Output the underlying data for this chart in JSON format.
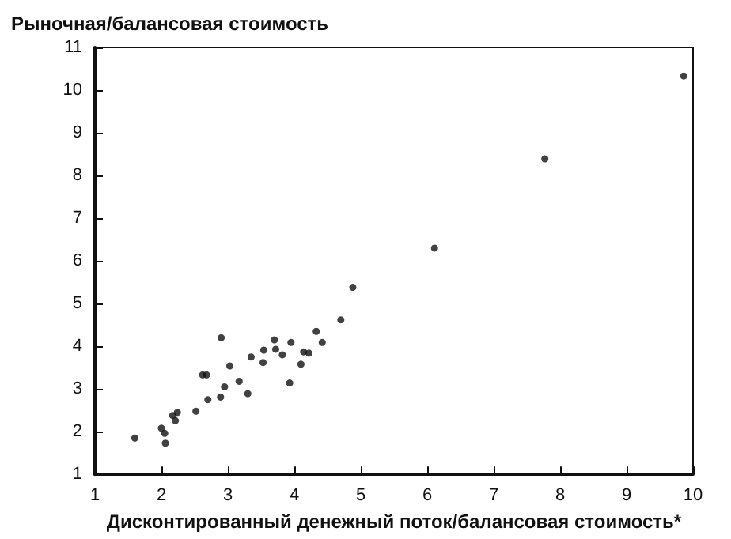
{
  "chart_data": {
    "type": "scatter",
    "title": "Рыночная/балансовая стоимость",
    "xlabel": "Дисконтированный денежный поток/балансовая стоимость*",
    "x": [
      1.6,
      2.0,
      2.05,
      2.06,
      2.17,
      2.21,
      2.24,
      2.52,
      2.62,
      2.68,
      2.7,
      2.9,
      2.89,
      2.95,
      3.03,
      3.17,
      3.3,
      3.35,
      3.53,
      3.54,
      3.7,
      3.72,
      3.82,
      3.93,
      3.95,
      4.1,
      4.14,
      4.22,
      4.33,
      4.42,
      4.7,
      4.88,
      6.11,
      7.77,
      9.86
    ],
    "values": [
      1.85,
      2.08,
      1.96,
      1.73,
      2.38,
      2.26,
      2.45,
      2.48,
      3.33,
      3.33,
      2.75,
      4.2,
      2.81,
      3.05,
      3.54,
      3.18,
      2.89,
      3.75,
      3.62,
      3.91,
      4.15,
      3.93,
      3.8,
      3.14,
      4.09,
      3.58,
      3.87,
      3.84,
      4.35,
      4.09,
      4.62,
      5.38,
      6.3,
      8.39,
      10.33
    ],
    "color": "#111111",
    "marker": "circle",
    "xlim": [
      1,
      10
    ],
    "xticks": [
      1,
      2,
      3,
      4,
      5,
      6,
      7,
      8,
      9,
      10
    ],
    "ylim": [
      1,
      11
    ],
    "yticks": [
      1,
      2,
      3,
      4,
      5,
      6,
      7,
      8,
      9,
      10,
      11
    ]
  }
}
